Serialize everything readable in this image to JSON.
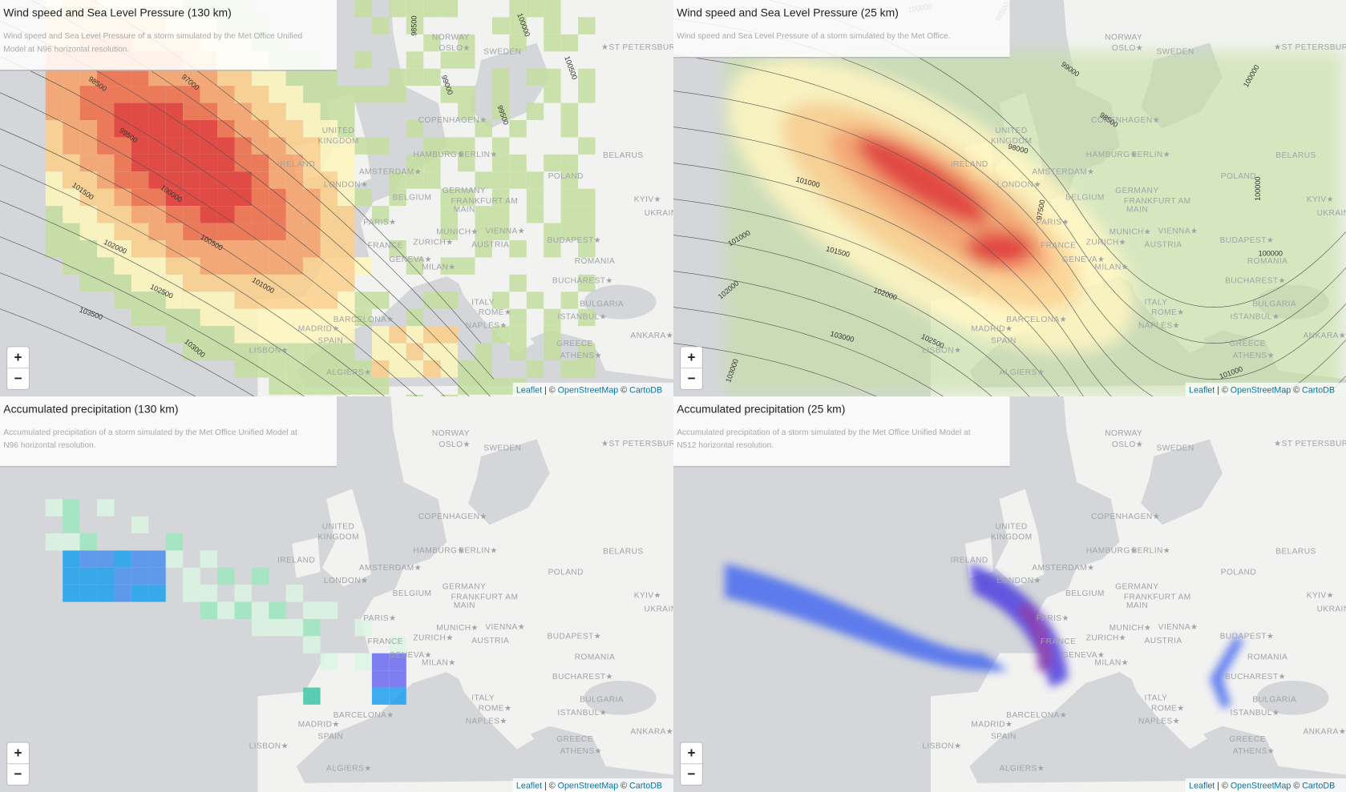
{
  "panels": [
    {
      "title": "Wind speed and Sea Level Pressure (130 km)",
      "description": [
        "Wind speed and Sea Level Pressure of a storm simulated by the Met Office Unified",
        "Model at N96 horizontal resolution."
      ],
      "contour_labels": [
        "98500",
        "100000",
        "100500",
        "99000",
        "99500",
        "98500",
        "97000",
        "99500",
        "100000",
        "101500",
        "100500",
        "102000",
        "101000",
        "102500",
        "103500",
        "103000"
      ]
    },
    {
      "title": "Wind speed and Sea Level Pressure (25 km)",
      "description": [
        "Wind speed and Sea Level Pressure of a storm simulated by the Met Office."
      ],
      "contour_labels": [
        "100000",
        "98500",
        "99000",
        "100000",
        "98500",
        "98000",
        "101000",
        "97500",
        "100000",
        "101000",
        "100000",
        "101500",
        "102000",
        "102000",
        "103000",
        "102500",
        "103000",
        "101000"
      ]
    },
    {
      "title": "Accumulated precipitation (130 km)",
      "description": [
        "Accumulated precipitation of a storm simulated by the Met Office Unified Model at",
        "N96 horizontal resolution."
      ],
      "contour_labels": []
    },
    {
      "title": "Accumulated precipitation (25 km)",
      "description": [
        "Accumulated precipitation of a storm simulated by the Met Office Unified Model at",
        "N512 horizontal resolution."
      ],
      "contour_labels": []
    }
  ],
  "basemap_labels": [
    "NORWAY",
    "OSLO★",
    "SWEDEN",
    "★ST PETERSBURG",
    "COPENHAGEN★",
    "UNITED",
    "KINGDOM",
    "IRELAND",
    "HAMBURG★",
    "BERLIN★",
    "BELARUS",
    "AMSTERDAM★",
    "POLAND",
    "LONDON★",
    "GERMANY",
    "FRANKFURT AM",
    "MAIN",
    "BELGIUM",
    "KYIV★",
    "UKRAINE",
    "PARIS★",
    "MUNICH★",
    "VIENNA★",
    "BUDAPEST★",
    "FRANCE",
    "ZURICH★",
    "AUSTRIA",
    "GENEVA★",
    "ROMANIA",
    "MILAN★",
    "BUCHAREST★",
    "ITALY",
    "BULGARIA",
    "BARCELONA★",
    "ROME★",
    "ISTANBUL★",
    "MADRID★",
    "SPAIN",
    "NAPLES★",
    "ANKARA★",
    "GREECE",
    "LISBON★",
    "ATHENS★",
    "ALGIERS★"
  ],
  "zoom_in": "+",
  "zoom_out": "−",
  "attribution": {
    "leaflet": "Leaflet",
    "separator": "| ©",
    "osm": "OpenStreetMap",
    "copy": "©",
    "carto": "CartoDB"
  }
}
